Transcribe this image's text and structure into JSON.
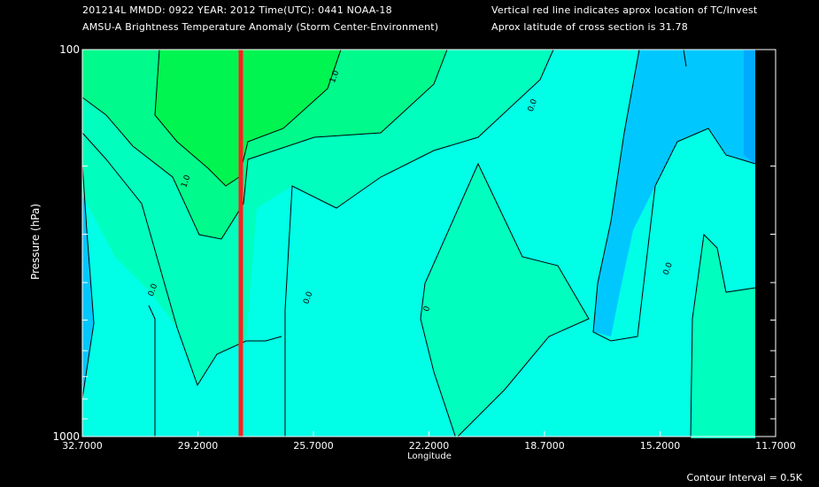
{
  "header": {
    "line1": "201214L  MMDD: 0922 YEAR: 2012 Time(UTC): 0441 NOAA-18",
    "line2": "AMSU-A Brightness Temperature Anomaly (Storm Center-Environment)",
    "right1": "Vertical red line indicates aprox location of TC/Invest",
    "right2": "Aprox latitude of cross section is 31.78"
  },
  "footer": {
    "contour_interval": "Contour Interval = 0.5K"
  },
  "colors": {
    "level_n05": "#00c8ff",
    "level_0": "#00ffe6",
    "level_05": "#00ffbe",
    "level_1": "#00fa8c",
    "level_15": "#00f550",
    "marker": "#ff2020",
    "right_band": "#00aaff"
  },
  "chart_data": {
    "type": "heatmap",
    "title": "AMSU-A Brightness Temperature Anomaly (Storm Center-Environment)",
    "xlabel": "Longitude",
    "ylabel": "Pressure (hPa)",
    "x_ticks": [
      "32.7000",
      "29.2000",
      "25.7000",
      "22.2000",
      "18.7000",
      "15.2000",
      "11.7000"
    ],
    "y_ticks": [
      "100",
      "1000"
    ],
    "xlim": [
      32.7,
      11.7
    ],
    "ylim": [
      1000,
      100
    ],
    "y_scale": "log",
    "storm_longitude": 27.9,
    "contour_interval": 0.5,
    "contour_levels": [
      -0.5,
      0.0,
      0.5,
      1.0,
      1.5
    ],
    "contour_labels": [
      {
        "text": "1.0",
        "lon": 25.0,
        "p": 118
      },
      {
        "text": "0.0",
        "lon": 19.0,
        "p": 140
      },
      {
        "text": "1.0",
        "lon": 29.5,
        "p": 220
      },
      {
        "text": "0.0",
        "lon": 30.5,
        "p": 420
      },
      {
        "text": "0.0",
        "lon": 25.8,
        "p": 440
      },
      {
        "text": "0",
        "lon": 22.2,
        "p": 470
      },
      {
        "text": "0.0",
        "lon": 14.9,
        "p": 370
      }
    ]
  }
}
